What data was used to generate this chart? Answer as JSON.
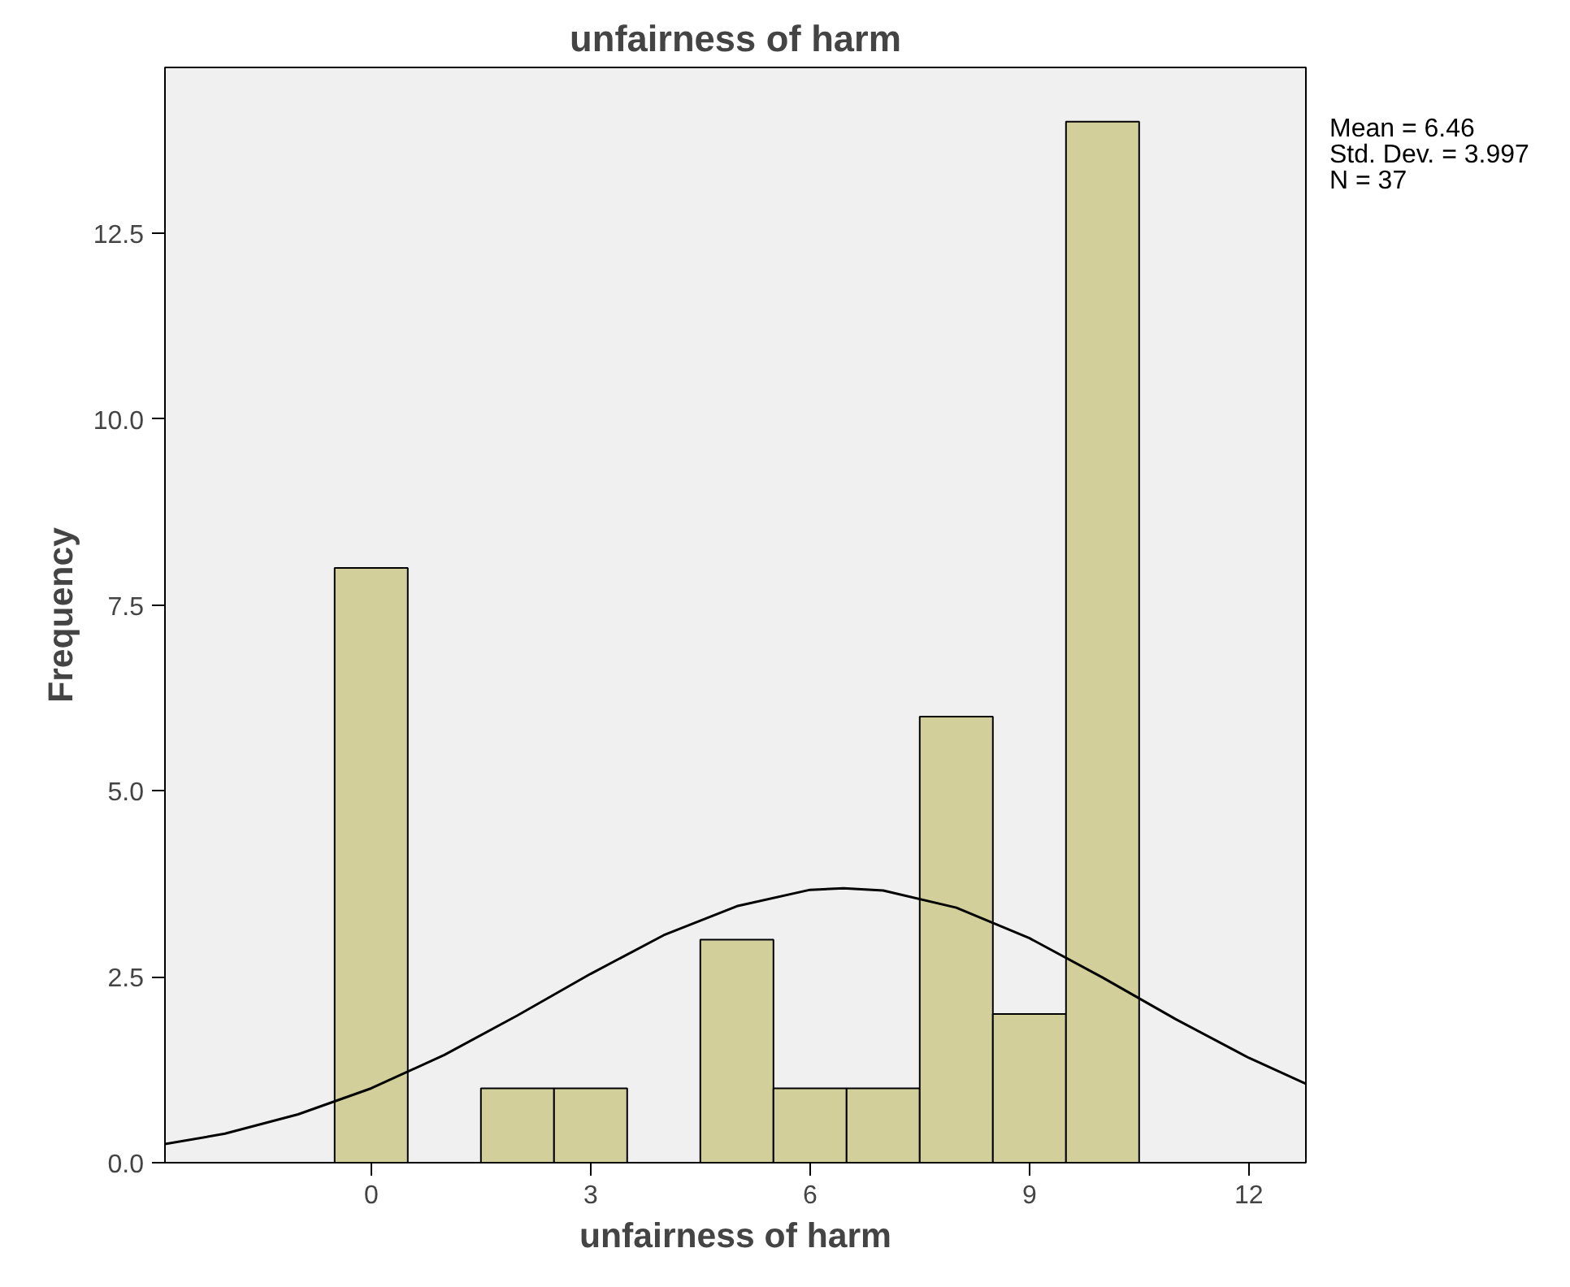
{
  "chart_data": {
    "type": "histogram",
    "title": "unfairness of harm",
    "xlabel": "unfairness of harm",
    "ylabel": "Frequency",
    "bins": [
      -0.5,
      0.5,
      1.5,
      2.5,
      3.5,
      4.5,
      5.5,
      6.5,
      7.5,
      8.5,
      9.5,
      10.5
    ],
    "values": [
      8,
      0,
      1,
      1,
      0,
      3,
      1,
      1,
      6,
      2,
      14
    ],
    "color": "#d3cf9a",
    "series": [
      {
        "type": "line",
        "color": "#000000",
        "x": [
          -2.82,
          -2,
          -1,
          0,
          1,
          2,
          3,
          4,
          5,
          6,
          6.46,
          7,
          8,
          9,
          10,
          11,
          12,
          12.78
        ],
        "values": [
          0.25,
          0.39,
          0.65,
          1.0,
          1.45,
          1.98,
          2.54,
          3.06,
          3.45,
          3.67,
          3.69,
          3.66,
          3.43,
          3.02,
          2.49,
          1.93,
          1.41,
          1.06
        ]
      }
    ],
    "xlim": [
      -2.82,
      12.78
    ],
    "ylim": [
      0,
      14.73
    ],
    "xticks": [
      0,
      3,
      6,
      9,
      12
    ],
    "yticks": [
      {
        "value": 0,
        "label": "0.0"
      },
      {
        "value": 2.5,
        "label": "2.5"
      },
      {
        "value": 5,
        "label": "5.0"
      },
      {
        "value": 7.5,
        "label": "7.5"
      },
      {
        "value": 10,
        "label": "10.0"
      },
      {
        "value": 12.5,
        "label": "12.5"
      }
    ],
    "annotations": [
      "Mean = 6.46",
      "Std. Dev. = 3.997",
      "N = 37"
    ],
    "grid": false
  }
}
